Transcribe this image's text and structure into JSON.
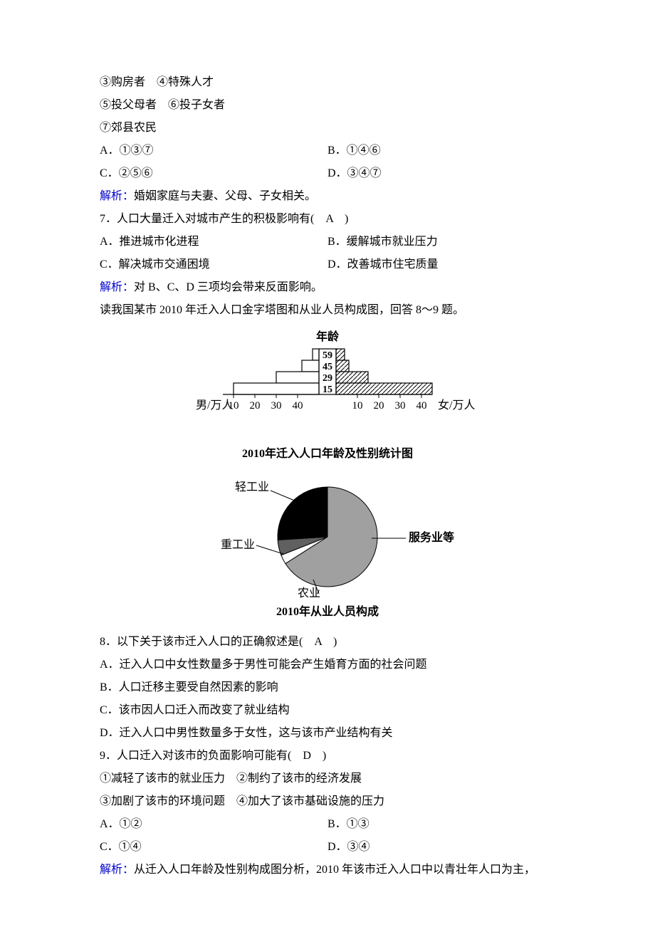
{
  "intro_lines": {
    "l1": "③购房者　④特殊人才",
    "l2": "⑤投父母者　⑥投子女者",
    "l3": "⑦郊县农民"
  },
  "q6_options": {
    "a": "A．①③⑦",
    "b": "B．①④⑥",
    "c": "C．②⑤⑥",
    "d": "D．③④⑦"
  },
  "q6_expl_label": "解析：",
  "q6_expl_text": "婚姻家庭与夫妻、父母、子女相关。",
  "q7_stem": "7．人口大量迁入对城市产生的积极影响有(　A　)",
  "q7_options": {
    "a": "A．推进城市化进程",
    "b": "B．缓解城市就业压力",
    "c": "C．解决城市交通困境",
    "d": "D．改善城市住宅质量"
  },
  "q7_expl_label": "解析：",
  "q7_expl_text": "对 B、C、D 三项均会带来反面影响。",
  "lead89": "读我国某市 2010 年迁入人口金字塔图和从业人员构成图，回答 8～9 题。",
  "pyramid": {
    "title_top": "年龄",
    "age_labels": [
      "59",
      "45",
      "29",
      "15"
    ],
    "left_label": "男/万人",
    "right_label": "女/万人",
    "ticks_left": [
      "40",
      "30",
      "20",
      "10"
    ],
    "ticks_right": [
      "10",
      "20",
      "30",
      "40"
    ],
    "male_values": [
      3,
      8,
      20,
      40
    ],
    "female_values": [
      4,
      6,
      15,
      45
    ],
    "bar_color_male": "#ffffff",
    "bar_fill_female_hatch": true,
    "stroke": "#000000",
    "caption": "2010年迁入人口年龄及性别统计图"
  },
  "pie": {
    "caption": "2010年从业人员构成",
    "labels": {
      "light": "轻工业",
      "heavy": "重工业",
      "agri": "农业",
      "service": "服务业等"
    },
    "slices": {
      "service_pct": 66,
      "light_pct": 26,
      "heavy_pct": 5,
      "agri_pct": 3
    },
    "colors": {
      "service": "#a0a0a0",
      "light": "#000000",
      "heavy": "#606060",
      "agri": "#ffffff",
      "stroke": "#000000"
    }
  },
  "q8_stem": "8．以下关于该市迁入人口的正确叙述是(　A　)",
  "q8_options": {
    "a": "A．迁入人口中女性数量多于男性可能会产生婚育方面的社会问题",
    "b": "B．人口迁移主要受自然因素的影响",
    "c": "C．该市因人口迁入而改变了就业结构",
    "d": "D．迁入人口中男性数量多于女性，这与该市产业结构有关"
  },
  "q9_stem": "9．人口迁入对该市的负面影响可能有(　D　)",
  "q9_sub1": "①减轻了该市的就业压力　②制约了该市的经济发展",
  "q9_sub2": "③加剧了该市的环境问题　④加大了该市基础设施的压力",
  "q9_options": {
    "a": "A．①②",
    "b": "B．①③",
    "c": "C．①④",
    "d": "D．③④"
  },
  "q89_expl_label": "解析：",
  "q89_expl_text": "从迁入人口年龄及性别构成图分析，2010 年该市迁入人口中以青壮年人口为主，"
}
